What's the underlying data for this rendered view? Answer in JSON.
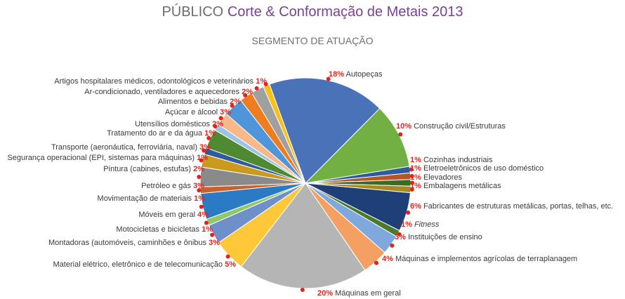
{
  "title": {
    "prefix": "PÚBLICO",
    "main": "Corte & Conformação de Metais 2013"
  },
  "subtitle": "SEGMENTO DE ATUAÇÃO",
  "colors": {
    "title_prefix": "#6d6d6d",
    "title_main": "#7b3f98",
    "percent_label": "#e2231a",
    "marker": "#e2231a"
  },
  "chart_data": {
    "type": "pie",
    "title": "PÚBLICO Corte & Conformação de Metais 2013",
    "subtitle": "SEGMENTO DE ATUAÇÃO",
    "unit": "%",
    "slices": [
      {
        "label": "Autopeças",
        "value": 18,
        "color": "#4a72b8",
        "side": "right"
      },
      {
        "label": "Construção civil/Estruturas",
        "value": 10,
        "color": "#72b043",
        "side": "right"
      },
      {
        "label": "Cozinhas industriais",
        "value": 1,
        "color": "#2e5aa0",
        "side": "right"
      },
      {
        "label": "Eletroeletrônicos de uso doméstico",
        "value": 1,
        "color": "#b85525",
        "side": "right"
      },
      {
        "label": "Elevadores",
        "value": 1,
        "color": "#3e6a28",
        "side": "right"
      },
      {
        "label": "Embalagens metálicas",
        "value": 1,
        "color": "#a8891f",
        "side": "right"
      },
      {
        "label": "Fabricantes de estruturas metálicas, portas, telhas, etc.",
        "value": 6,
        "color": "#1f3f78",
        "side": "right"
      },
      {
        "label": "Fitness",
        "value": 1,
        "color": "#4c7a2b",
        "side": "right",
        "italic": true
      },
      {
        "label": "Instituições de ensino",
        "value": 3,
        "color": "#7fa9dc",
        "side": "right"
      },
      {
        "label": "Máquinas e implementos agrícolas de terraplanagem",
        "value": 4,
        "color": "#f4a063",
        "side": "right"
      },
      {
        "label": "Máquinas em geral",
        "value": 20,
        "color": "#b5b5b5",
        "side": "bottom"
      },
      {
        "label": "Material elétrico, eletrônico e de telecomunicação",
        "value": 5,
        "color": "#ffc838",
        "side": "left"
      },
      {
        "label": "Montadoras (automóveis, caminhões e ônibus",
        "value": 3,
        "color": "#6f8fca",
        "side": "left"
      },
      {
        "label": "Motocicletas e bicicletas",
        "value": 1,
        "color": "#8fc86a",
        "side": "left"
      },
      {
        "label": "Móveis em geral",
        "value": 4,
        "color": "#2b7bc4",
        "side": "left"
      },
      {
        "label": "Movimentação de materiais",
        "value": 1,
        "color": "#c8612c",
        "side": "left"
      },
      {
        "label": "Petróleo e gás",
        "value": 3,
        "color": "#8a8a8a",
        "side": "left"
      },
      {
        "label": "Pintura (cabines, estufas)",
        "value": 2,
        "color": "#c99a1e",
        "side": "left"
      },
      {
        "label": "Segurança operacional (EPI, sistemas para máquinas)",
        "value": 1,
        "color": "#2f5a9c",
        "side": "left"
      },
      {
        "label": "Transporte (aeronáutica, ferroviária, naval)",
        "value": 3,
        "color": "#4f8a32",
        "side": "left"
      },
      {
        "label": "Tratamento do ar e da água",
        "value": 1,
        "color": "#9dc3e6",
        "side": "left"
      },
      {
        "label": "Utensílios domésticos",
        "value": 2,
        "color": "#f7b98a",
        "side": "left"
      },
      {
        "label": "Açúcar e álcool",
        "value": 3,
        "color": "#4e95d9",
        "side": "left"
      },
      {
        "label": "Alimentos e bebidas",
        "value": 2,
        "color": "#ee7d1f",
        "side": "left"
      },
      {
        "label": "Ar-condicionado, ventiladores e aquecedores",
        "value": 2,
        "color": "#a0a0a0",
        "side": "left"
      },
      {
        "label": "Artigos hospitalares médicos, odontológicos e veterinários",
        "value": 1,
        "color": "#f5c21a",
        "side": "left"
      }
    ]
  }
}
